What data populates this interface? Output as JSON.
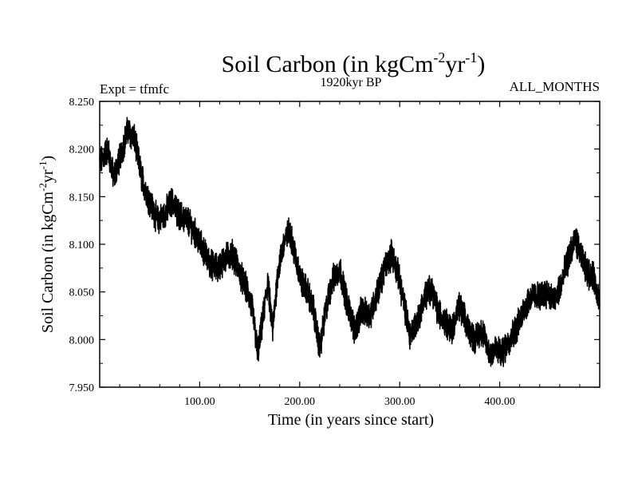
{
  "chart_data": {
    "type": "line",
    "title": "Soil Carbon (in kgCm",
    "title_sup1": "-2",
    "title_mid": "yr",
    "title_sup2": "-1",
    "title_end": ")",
    "subtitle": "1920kyr BP",
    "left_label": "Expt = tfmfc",
    "right_label": "ALL_MONTHS",
    "xlabel": "Time (in years since start)",
    "ylabel": "Soil Carbon (in kgCm",
    "ylabel_sup1": "-2",
    "ylabel_mid": "yr",
    "ylabel_sup2": "-1",
    "ylabel_end": ")",
    "xlim": [
      0,
      500
    ],
    "ylim": [
      7.95,
      8.25
    ],
    "x_ticks": [
      100,
      200,
      300,
      400
    ],
    "x_tick_labels": [
      "100.00",
      "200.00",
      "300.00",
      "400.00"
    ],
    "y_ticks": [
      7.95,
      8.0,
      8.05,
      8.1,
      8.15,
      8.2,
      8.25
    ],
    "y_tick_labels": [
      "7.950",
      "8.000",
      "8.050",
      "8.100",
      "8.150",
      "8.200",
      "8.250"
    ],
    "series": [
      {
        "name": "Soil Carbon",
        "color": "#000000",
        "x": [
          0,
          8,
          14,
          20,
          28,
          35,
          42,
          50,
          58,
          64,
          72,
          80,
          88,
          96,
          103,
          110,
          118,
          125,
          133,
          140,
          148,
          153,
          158,
          163,
          168,
          173,
          178,
          184,
          190,
          196,
          202,
          208,
          214,
          220,
          226,
          232,
          240,
          247,
          255,
          262,
          270,
          278,
          285,
          292,
          298,
          304,
          310,
          318,
          325,
          332,
          338,
          345,
          352,
          360,
          367,
          375,
          382,
          390,
          396,
          402,
          410,
          418,
          425,
          432,
          440,
          447,
          455,
          462,
          470,
          476,
          482,
          488,
          494,
          500
        ],
        "values": [
          8.185,
          8.2,
          8.17,
          8.19,
          8.22,
          8.21,
          8.17,
          8.145,
          8.125,
          8.13,
          8.145,
          8.13,
          8.125,
          8.11,
          8.095,
          8.08,
          8.075,
          8.085,
          8.09,
          8.07,
          8.05,
          8.03,
          7.985,
          8.02,
          8.06,
          8.01,
          8.07,
          8.1,
          8.115,
          8.085,
          8.06,
          8.05,
          8.03,
          7.99,
          8.03,
          8.06,
          8.075,
          8.04,
          8.01,
          8.03,
          8.025,
          8.05,
          8.075,
          8.09,
          8.07,
          8.04,
          8.005,
          8.02,
          8.045,
          8.055,
          8.03,
          8.02,
          8.01,
          8.035,
          8.015,
          8.0,
          8.01,
          7.985,
          7.99,
          7.985,
          8.0,
          8.015,
          8.035,
          8.045,
          8.045,
          8.05,
          8.04,
          8.06,
          8.09,
          8.105,
          8.085,
          8.07,
          8.065,
          8.04
        ]
      }
    ]
  }
}
